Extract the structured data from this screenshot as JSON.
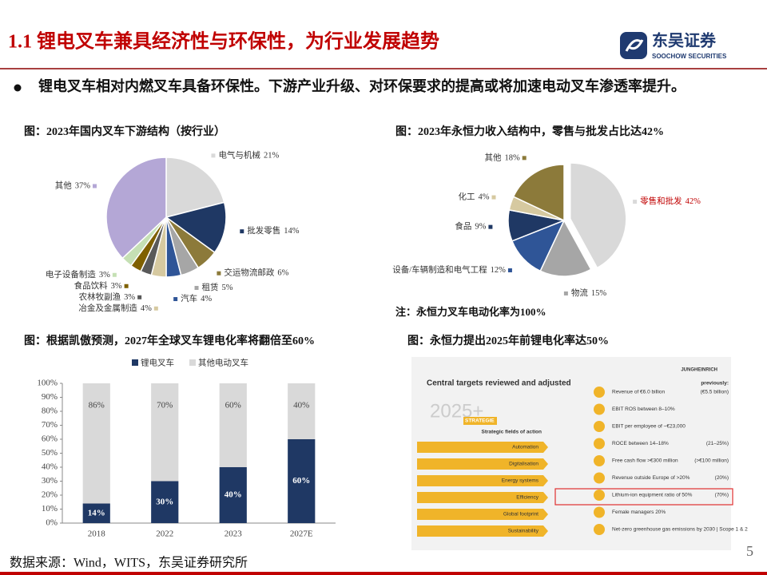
{
  "header": {
    "title": "1.1 锂电叉车兼具经济性与环保性，为行业发展趋势",
    "logo": "东吴证券",
    "logo_en": "SOOCHOW SECURITIES"
  },
  "bullet": "锂电叉车相对内燃叉车具备环保性。下游产业升级、对环保要求的提高或将加速电动叉车渗透率提升。",
  "chart_data": [
    {
      "type": "pie",
      "title": "图：2023年国内叉车下游结构（按行业）",
      "categories": [
        "电气与机械",
        "批发零售",
        "交运物流邮政",
        "租赁",
        "汽车",
        "冶金及金属制造",
        "农林牧副渔",
        "食品饮料",
        "电子设备制造",
        "其他"
      ],
      "values": [
        21,
        14,
        6,
        5,
        4,
        4,
        3,
        3,
        3,
        37
      ],
      "value_labels": [
        "21%",
        "14%",
        "6%",
        "5%",
        "4%",
        "4%",
        "3%",
        "3%",
        "3%",
        "37%"
      ],
      "colors": [
        "#d9d9d9",
        "#1f3864",
        "#8c7a3a",
        "#a6a6a6",
        "#2f5597",
        "#d6c9a0",
        "#595959",
        "#7f6000",
        "#c5e0b4",
        "#b4a7d6"
      ]
    },
    {
      "type": "pie",
      "title": "图：2023年永恒力收入结构中，零售与批发占比达42%",
      "categories": [
        "零售和批发",
        "物流",
        "设备/车辆制造和电气工程",
        "食品",
        "化工",
        "其他"
      ],
      "values": [
        42,
        15,
        12,
        9,
        4,
        18
      ],
      "value_labels": [
        "42%",
        "15%",
        "12%",
        "9%",
        "4%",
        "18%"
      ],
      "colors": [
        "#d9d9d9",
        "#a6a6a6",
        "#2f5597",
        "#1f3864",
        "#d6c9a0",
        "#8c7a3a"
      ],
      "note": "注：永恒力叉车电动化率为100%"
    },
    {
      "type": "stacked_bar",
      "title": "图：根据凯傲预测，2027年全球叉车锂电化率将翻倍至60%",
      "categories": [
        "2018",
        "2022",
        "2023",
        "2027E"
      ],
      "series": [
        {
          "name": "锂电叉车",
          "color": "#1f3864",
          "values": [
            14,
            30,
            40,
            60
          ],
          "value_labels": [
            "14%",
            "30%",
            "40%",
            "60%"
          ]
        },
        {
          "name": "其他电动叉车",
          "color": "#d9d9d9",
          "values": [
            86,
            70,
            60,
            40
          ],
          "value_labels": [
            "86%",
            "70%",
            "60%",
            "40%"
          ]
        }
      ],
      "ylim": [
        0,
        100
      ],
      "yticks": [
        {
          "value": 0,
          "label": "0%"
        },
        {
          "value": 10,
          "label": "10%"
        },
        {
          "value": 20,
          "label": "20%"
        },
        {
          "value": 30,
          "label": "30%"
        },
        {
          "value": 40,
          "label": "40%"
        },
        {
          "value": 50,
          "label": "50%"
        },
        {
          "value": 60,
          "label": "60%"
        },
        {
          "value": 70,
          "label": "70%"
        },
        {
          "value": 80,
          "label": "80%"
        },
        {
          "value": 90,
          "label": "90%"
        },
        {
          "value": 100,
          "label": "100%"
        }
      ]
    }
  ],
  "image_panel": {
    "title": "图：永恒力提出2025年前锂电化率达50%",
    "heading": "Central targets reviewed and adjusted",
    "brand": "JUNGHEINRICH",
    "previously": "previously:",
    "big": "2025+",
    "strategic": "STRATEGIE",
    "fields_heading": "Strategic fields of action",
    "fields": [
      "Automation",
      "Digitalisation",
      "Energy systems",
      "Efficiency",
      "Global footprint",
      "Sustainability"
    ],
    "targets": [
      {
        "text": "Revenue of €6.0 billion",
        "previous": "(€5.5 billion)"
      },
      {
        "text": "EBIT ROS between 8–10%"
      },
      {
        "text": "EBIT per employee of ~€23,000"
      },
      {
        "text": "ROCE between 14–18%",
        "previous": "(21–25%)"
      },
      {
        "text": "Free cash flow >€300 million",
        "previous": "(>€100 million)"
      },
      {
        "text": "Revenue outside Europe of >20%",
        "previous": "(20%)"
      },
      {
        "text": "Lithium-ion equipment ratio of 50%",
        "previous": "(70%)"
      },
      {
        "text": "Female managers 20%"
      },
      {
        "text": "Net-zero greenhouse gas emissions by 2030 | Scope 1 & 2"
      }
    ]
  },
  "source": "数据来源：Wind，WITS，东吴证券研究所",
  "page_number": "5"
}
